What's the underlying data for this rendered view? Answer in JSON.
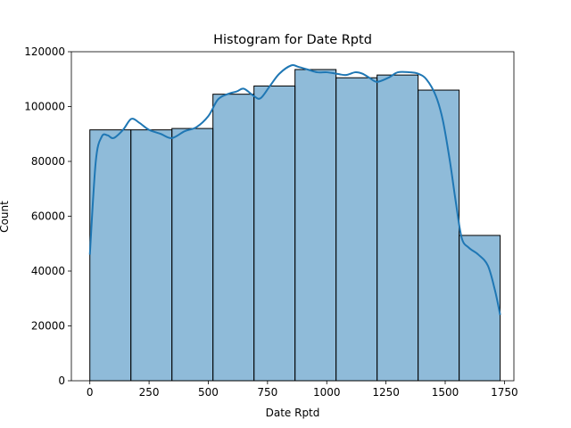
{
  "chart_data": {
    "type": "bar",
    "title": "Histogram for Date Rptd",
    "xlabel": "Date Rptd",
    "ylabel": "Count",
    "xlim": [
      -78,
      1790
    ],
    "ylim": [
      0,
      120000
    ],
    "x_ticks": [
      0,
      250,
      500,
      750,
      1000,
      1250,
      1500,
      1750
    ],
    "y_ticks": [
      0,
      20000,
      40000,
      60000,
      80000,
      100000,
      120000
    ],
    "bin_edges": [
      0,
      173.2,
      346.4,
      519.6,
      692.8,
      866,
      1039.2,
      1212.4,
      1385.6,
      1558.8,
      1732
    ],
    "values": [
      91500,
      91500,
      92000,
      104500,
      107500,
      113500,
      110500,
      111500,
      106000,
      53000
    ],
    "bar_color": "#1f77b4",
    "bar_alpha": 0.5,
    "edge_color": "#000000",
    "kde": {
      "color": "#1f77b4",
      "x": [
        0,
        25,
        50,
        75,
        100,
        140,
        175,
        210,
        250,
        300,
        346,
        400,
        450,
        500,
        540,
        580,
        620,
        650,
        690,
        720,
        760,
        800,
        850,
        880,
        920,
        960,
        1000,
        1040,
        1080,
        1120,
        1150,
        1180,
        1212,
        1260,
        1300,
        1350,
        1385,
        1420,
        1460,
        1490,
        1520,
        1545,
        1570,
        1600,
        1640,
        1680,
        1710,
        1732
      ],
      "y": [
        46000,
        80000,
        89000,
        89500,
        88500,
        91500,
        95500,
        94000,
        91500,
        90000,
        88500,
        91000,
        92500,
        96500,
        102500,
        104500,
        105500,
        106500,
        104000,
        103000,
        107500,
        112000,
        115000,
        114500,
        113500,
        112500,
        112500,
        112000,
        111500,
        112500,
        112000,
        110500,
        109000,
        110500,
        112500,
        112500,
        112000,
        110000,
        104000,
        95000,
        80000,
        65000,
        52000,
        48500,
        46000,
        42000,
        33000,
        24000
      ]
    },
    "grid": false,
    "legend": "none"
  }
}
